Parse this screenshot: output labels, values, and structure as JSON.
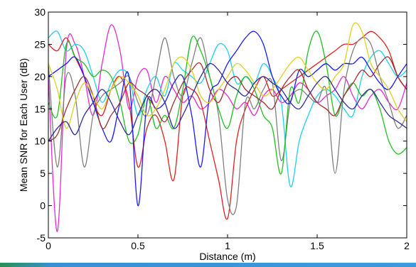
{
  "chart_data": {
    "type": "line",
    "title": "",
    "xlabel": "Distance (m)",
    "ylabel": "Mean SNR for Each User (dB)",
    "xlim": [
      0,
      2
    ],
    "ylim": [
      -5,
      30
    ],
    "xticks": [
      0,
      0.5,
      1,
      1.5,
      2
    ],
    "xtick_labels": [
      "0",
      "0.5",
      "1",
      "1.5",
      "2"
    ],
    "yticks": [
      -5,
      0,
      5,
      10,
      15,
      20,
      25,
      30
    ],
    "ytick_labels": [
      "-5",
      "0",
      "5",
      "10",
      "15",
      "20",
      "25",
      "30"
    ],
    "grid": false,
    "legend": "none",
    "x": [
      0,
      0.05,
      0.1,
      0.15,
      0.2,
      0.25,
      0.3,
      0.35,
      0.4,
      0.45,
      0.5,
      0.55,
      0.6,
      0.65,
      0.7,
      0.75,
      0.8,
      0.85,
      0.9,
      0.95,
      1.0,
      1.05,
      1.1,
      1.15,
      1.2,
      1.25,
      1.3,
      1.35,
      1.4,
      1.45,
      1.5,
      1.55,
      1.6,
      1.65,
      1.7,
      1.75,
      1.8,
      1.85,
      1.9,
      1.95,
      2.0
    ],
    "series": [
      {
        "color": "#e62ad1",
        "values": [
          20,
          -4,
          24,
          25,
          20,
          14,
          22,
          28,
          24,
          15,
          20,
          21,
          16,
          20,
          18,
          16,
          17,
          15,
          16,
          18,
          17,
          15,
          16,
          14,
          17,
          18,
          16,
          17,
          19,
          18,
          16,
          17,
          18,
          20,
          17,
          15,
          17,
          18,
          16,
          15,
          19
        ]
      },
      {
        "color": "#1fd0f0",
        "values": [
          26,
          27,
          24,
          25,
          24,
          20,
          16,
          19,
          21,
          20,
          14,
          18,
          20,
          17,
          22,
          21,
          20,
          19,
          22,
          25,
          24,
          19,
          20,
          19,
          22,
          20,
          16,
          3,
          10,
          14,
          17,
          18,
          17,
          15,
          14,
          20,
          23,
          24,
          22,
          20,
          21
        ]
      },
      {
        "color": "#e02020",
        "values": [
          25,
          24,
          26,
          23,
          20,
          16,
          14,
          18,
          20,
          16,
          6,
          12,
          14,
          10,
          4,
          17,
          18,
          16,
          10,
          4,
          -2,
          10,
          15,
          18,
          20,
          17,
          18,
          19,
          20,
          21,
          22,
          23,
          24,
          25,
          25,
          26,
          27,
          26,
          24,
          20,
          18
        ]
      },
      {
        "color": "#808080",
        "values": [
          22,
          6,
          20,
          17,
          6,
          14,
          17,
          18,
          19,
          20,
          16,
          14,
          20,
          26,
          20,
          17,
          22,
          26,
          20,
          14,
          1,
          0,
          16,
          15,
          18,
          19,
          7,
          16,
          18,
          17,
          16,
          18,
          5,
          18,
          24,
          26,
          25,
          20,
          16,
          12,
          14
        ]
      },
      {
        "color": "#20c020",
        "values": [
          16,
          14,
          25,
          23,
          22,
          20,
          21,
          20,
          16,
          10,
          11,
          17,
          12,
          14,
          12,
          18,
          26,
          24,
          20,
          15,
          12,
          17,
          20,
          18,
          14,
          12,
          5,
          18,
          16,
          24,
          27,
          22,
          14,
          17,
          19,
          17,
          18,
          15,
          10,
          8,
          9
        ]
      },
      {
        "color": "#1a1aff",
        "values": [
          20,
          21,
          22,
          23,
          20,
          16,
          12,
          10,
          16,
          20,
          0,
          16,
          15,
          16,
          19,
          20,
          14,
          6,
          17,
          19,
          22,
          24,
          26,
          27,
          25,
          20,
          17,
          16,
          21,
          20,
          21,
          22,
          21,
          22,
          22,
          23,
          21,
          19,
          18,
          20,
          22
        ]
      },
      {
        "color": "#a03030",
        "values": [
          10,
          11,
          15,
          18,
          20,
          17,
          12,
          14,
          16,
          19,
          18,
          17,
          15,
          13,
          16,
          19,
          21,
          22,
          18,
          16,
          19,
          20,
          18,
          17,
          16,
          15,
          18,
          20,
          21,
          18,
          16,
          15,
          14,
          17,
          19,
          21,
          20,
          22,
          23,
          20,
          18
        ]
      },
      {
        "color": "#e0d020",
        "values": [
          22,
          18,
          12,
          16,
          19,
          17,
          15,
          18,
          20,
          19,
          17,
          14,
          15,
          18,
          22,
          23,
          21,
          17,
          16,
          18,
          20,
          22,
          21,
          19,
          17,
          18,
          20,
          22,
          23,
          21,
          19,
          18,
          20,
          22,
          28,
          27,
          22,
          20,
          18,
          15,
          13
        ]
      },
      {
        "color": "#2d2d9a",
        "values": [
          10,
          12,
          13,
          11,
          14,
          16,
          18,
          16,
          13,
          11,
          14,
          17,
          18,
          16,
          12,
          14,
          17,
          20,
          22,
          21,
          19,
          18,
          17,
          19,
          20,
          19,
          18,
          16,
          15,
          17,
          19,
          20,
          18,
          16,
          15,
          17,
          18,
          16,
          14,
          13,
          12
        ]
      }
    ]
  }
}
